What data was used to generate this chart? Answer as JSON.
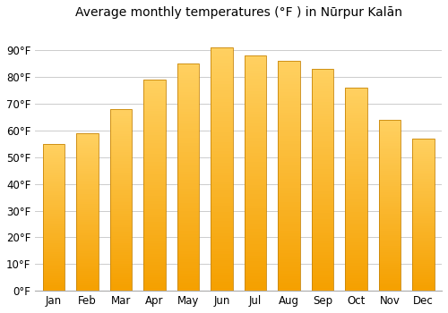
{
  "title": "Average monthly temperatures (°F ) in Nūrpur Kalān",
  "months": [
    "Jan",
    "Feb",
    "Mar",
    "Apr",
    "May",
    "Jun",
    "Jul",
    "Aug",
    "Sep",
    "Oct",
    "Nov",
    "Dec"
  ],
  "values": [
    55,
    59,
    68,
    79,
    85,
    91,
    88,
    86,
    83,
    76,
    64,
    57
  ],
  "bar_color": "#FDB813",
  "bar_edge_color": "#C8860A",
  "background_color": "#ffffff",
  "plot_bg_color": "#ffffff",
  "grid_color": "#cccccc",
  "ylim": [
    0,
    100
  ],
  "yticks": [
    0,
    10,
    20,
    30,
    40,
    50,
    60,
    70,
    80,
    90
  ],
  "ytick_labels": [
    "0°F",
    "10°F",
    "20°F",
    "30°F",
    "40°F",
    "50°F",
    "60°F",
    "70°F",
    "80°F",
    "90°F"
  ],
  "title_fontsize": 10,
  "tick_fontsize": 8.5,
  "bar_bottom_color": "#F5A800",
  "bar_top_color": "#FFD966"
}
